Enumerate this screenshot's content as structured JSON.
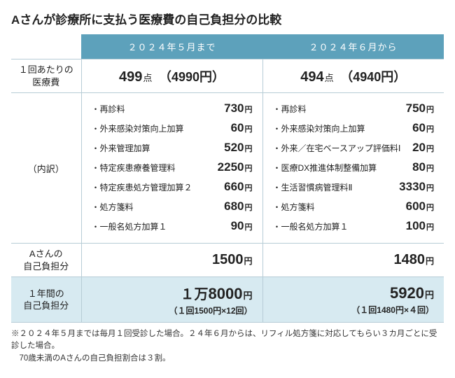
{
  "colors": {
    "header_bg": "#5da1bb",
    "annual_bg": "#d7eaf1",
    "border": "#b7ccd6",
    "text": "#222222",
    "background": "#ffffff"
  },
  "title": "Aさんが診療所に支払う医療費の自己負担分の比較",
  "periods": {
    "before": "２０２４年５月まで",
    "after": "２０２４年６月から"
  },
  "row_labels": {
    "per_visit": "１回あたりの\n医療費",
    "breakdown": "（内訳）",
    "self_burden": "Aさんの\n自己負担分",
    "annual": "１年間の\n自己負担分"
  },
  "per_visit": {
    "before": {
      "points": "499",
      "points_unit": "点",
      "yen": "（4990円）"
    },
    "after": {
      "points": "494",
      "points_unit": "点",
      "yen": "（4940円）"
    }
  },
  "breakdown": {
    "before": [
      {
        "name": "・再診料",
        "value": "730",
        "unit": "円"
      },
      {
        "name": "・外来感染対策向上加算",
        "value": "60",
        "unit": "円"
      },
      {
        "name": "・外来管理加算",
        "value": "520",
        "unit": "円"
      },
      {
        "name": "・特定疾患療養管理料",
        "value": "2250",
        "unit": "円"
      },
      {
        "name": "・特定疾患処方管理加算２",
        "value": "660",
        "unit": "円"
      },
      {
        "name": "・処方箋料",
        "value": "680",
        "unit": "円"
      },
      {
        "name": "・一般名処方加算１",
        "value": "90",
        "unit": "円"
      }
    ],
    "after": [
      {
        "name": "・再診料",
        "value": "750",
        "unit": "円"
      },
      {
        "name": "・外来感染対策向上加算",
        "value": "60",
        "unit": "円"
      },
      {
        "name": "・外来／在宅ベースアップ評価料Ⅰ",
        "value": "20",
        "unit": "円"
      },
      {
        "name": "・医療DX推進体制整備加算",
        "value": "80",
        "unit": "円"
      },
      {
        "name": "・生活習慣病管理料Ⅱ",
        "value": "3330",
        "unit": "円"
      },
      {
        "name": "・処方箋料",
        "value": "600",
        "unit": "円"
      },
      {
        "name": "・一般名処方加算１",
        "value": "100",
        "unit": "円"
      }
    ]
  },
  "self_burden": {
    "before": {
      "value": "1500",
      "unit": "円"
    },
    "after": {
      "value": "1480",
      "unit": "円"
    }
  },
  "annual": {
    "before": {
      "prefix": "１万",
      "value": "8000",
      "unit": "円",
      "sub": "（１回1500円×12回）"
    },
    "after": {
      "prefix": "",
      "value": "5920",
      "unit": "円",
      "sub": "（１回1480円×４回）"
    }
  },
  "footnote": {
    "line1": "※２０２４年５月までは毎月１回受診した場合。２４年６月からは、リフィル処方箋に対応してもらい３カ月ごとに受診した場合。",
    "line2": "　70歳未満のAさんの自己負担割合は３割。"
  }
}
